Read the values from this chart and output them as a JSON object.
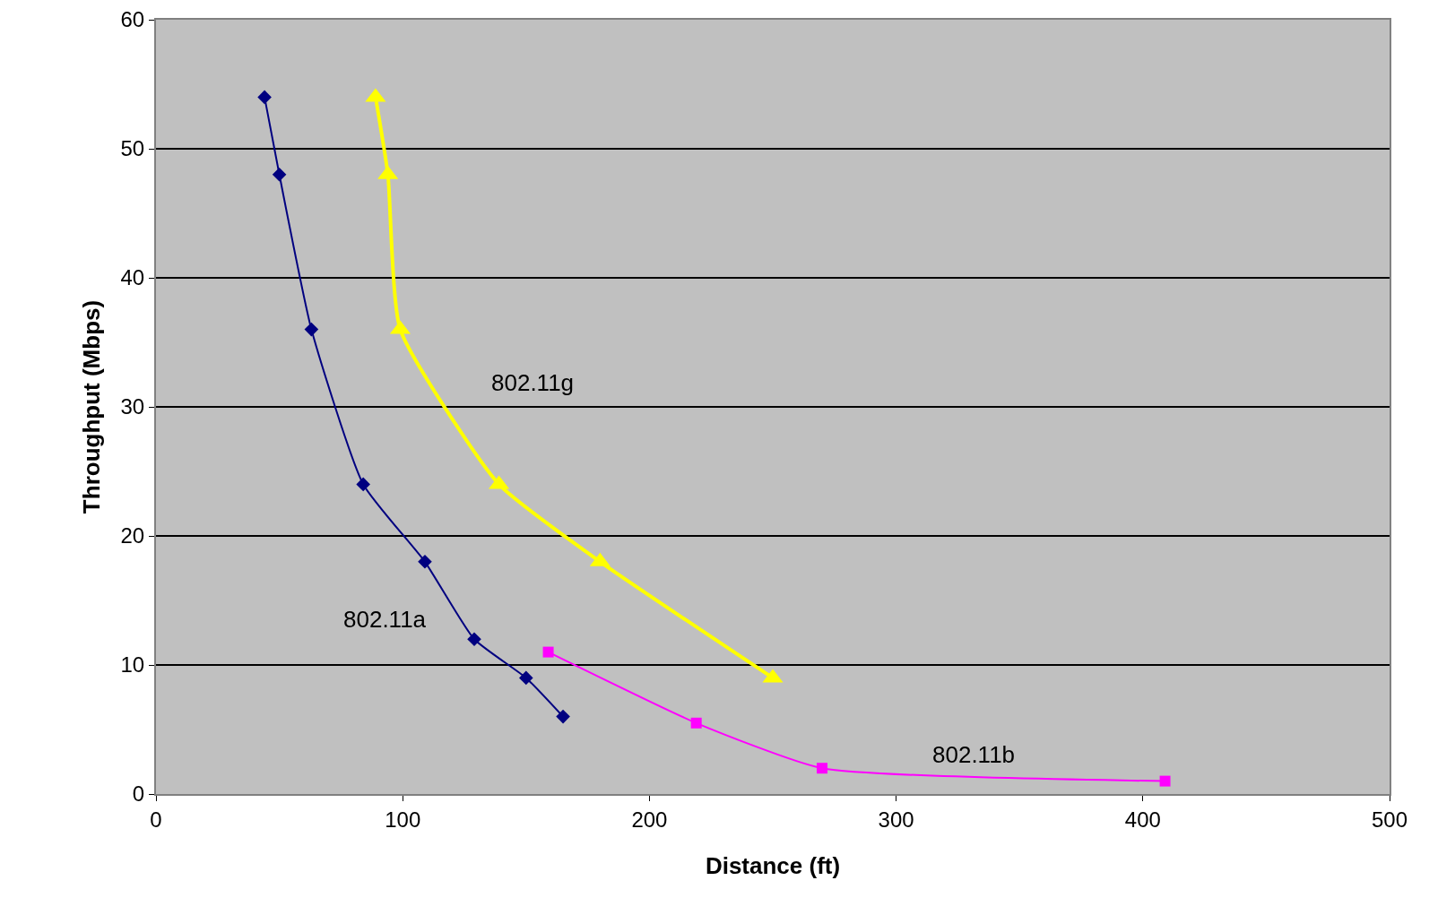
{
  "chart_data": {
    "type": "line",
    "xlabel": "Distance (ft)",
    "ylabel": "Throughput (Mbps)",
    "xlim": [
      0,
      500
    ],
    "xticks": [
      0,
      100,
      200,
      300,
      400,
      500
    ],
    "ylim": [
      0,
      60
    ],
    "yticks": [
      0,
      10,
      20,
      30,
      40,
      50,
      60
    ],
    "grid": "y",
    "legend": false,
    "series": [
      {
        "name": "802.11a",
        "color": "#000080",
        "marker": "diamond",
        "x": [
          44,
          50,
          63,
          84,
          109,
          129,
          150,
          165
        ],
        "values": [
          54,
          48,
          36,
          24,
          18,
          12,
          9,
          6
        ]
      },
      {
        "name": "802.11g",
        "color": "#ffff00",
        "marker": "triangle",
        "x": [
          89,
          94,
          99,
          139,
          180,
          250
        ],
        "values": [
          54,
          48,
          36,
          24,
          18,
          9
        ]
      },
      {
        "name": "802.11b",
        "color": "#ff00ff",
        "marker": "square",
        "x": [
          159,
          219,
          270,
          409
        ],
        "values": [
          11,
          5.5,
          2,
          1
        ]
      }
    ]
  }
}
